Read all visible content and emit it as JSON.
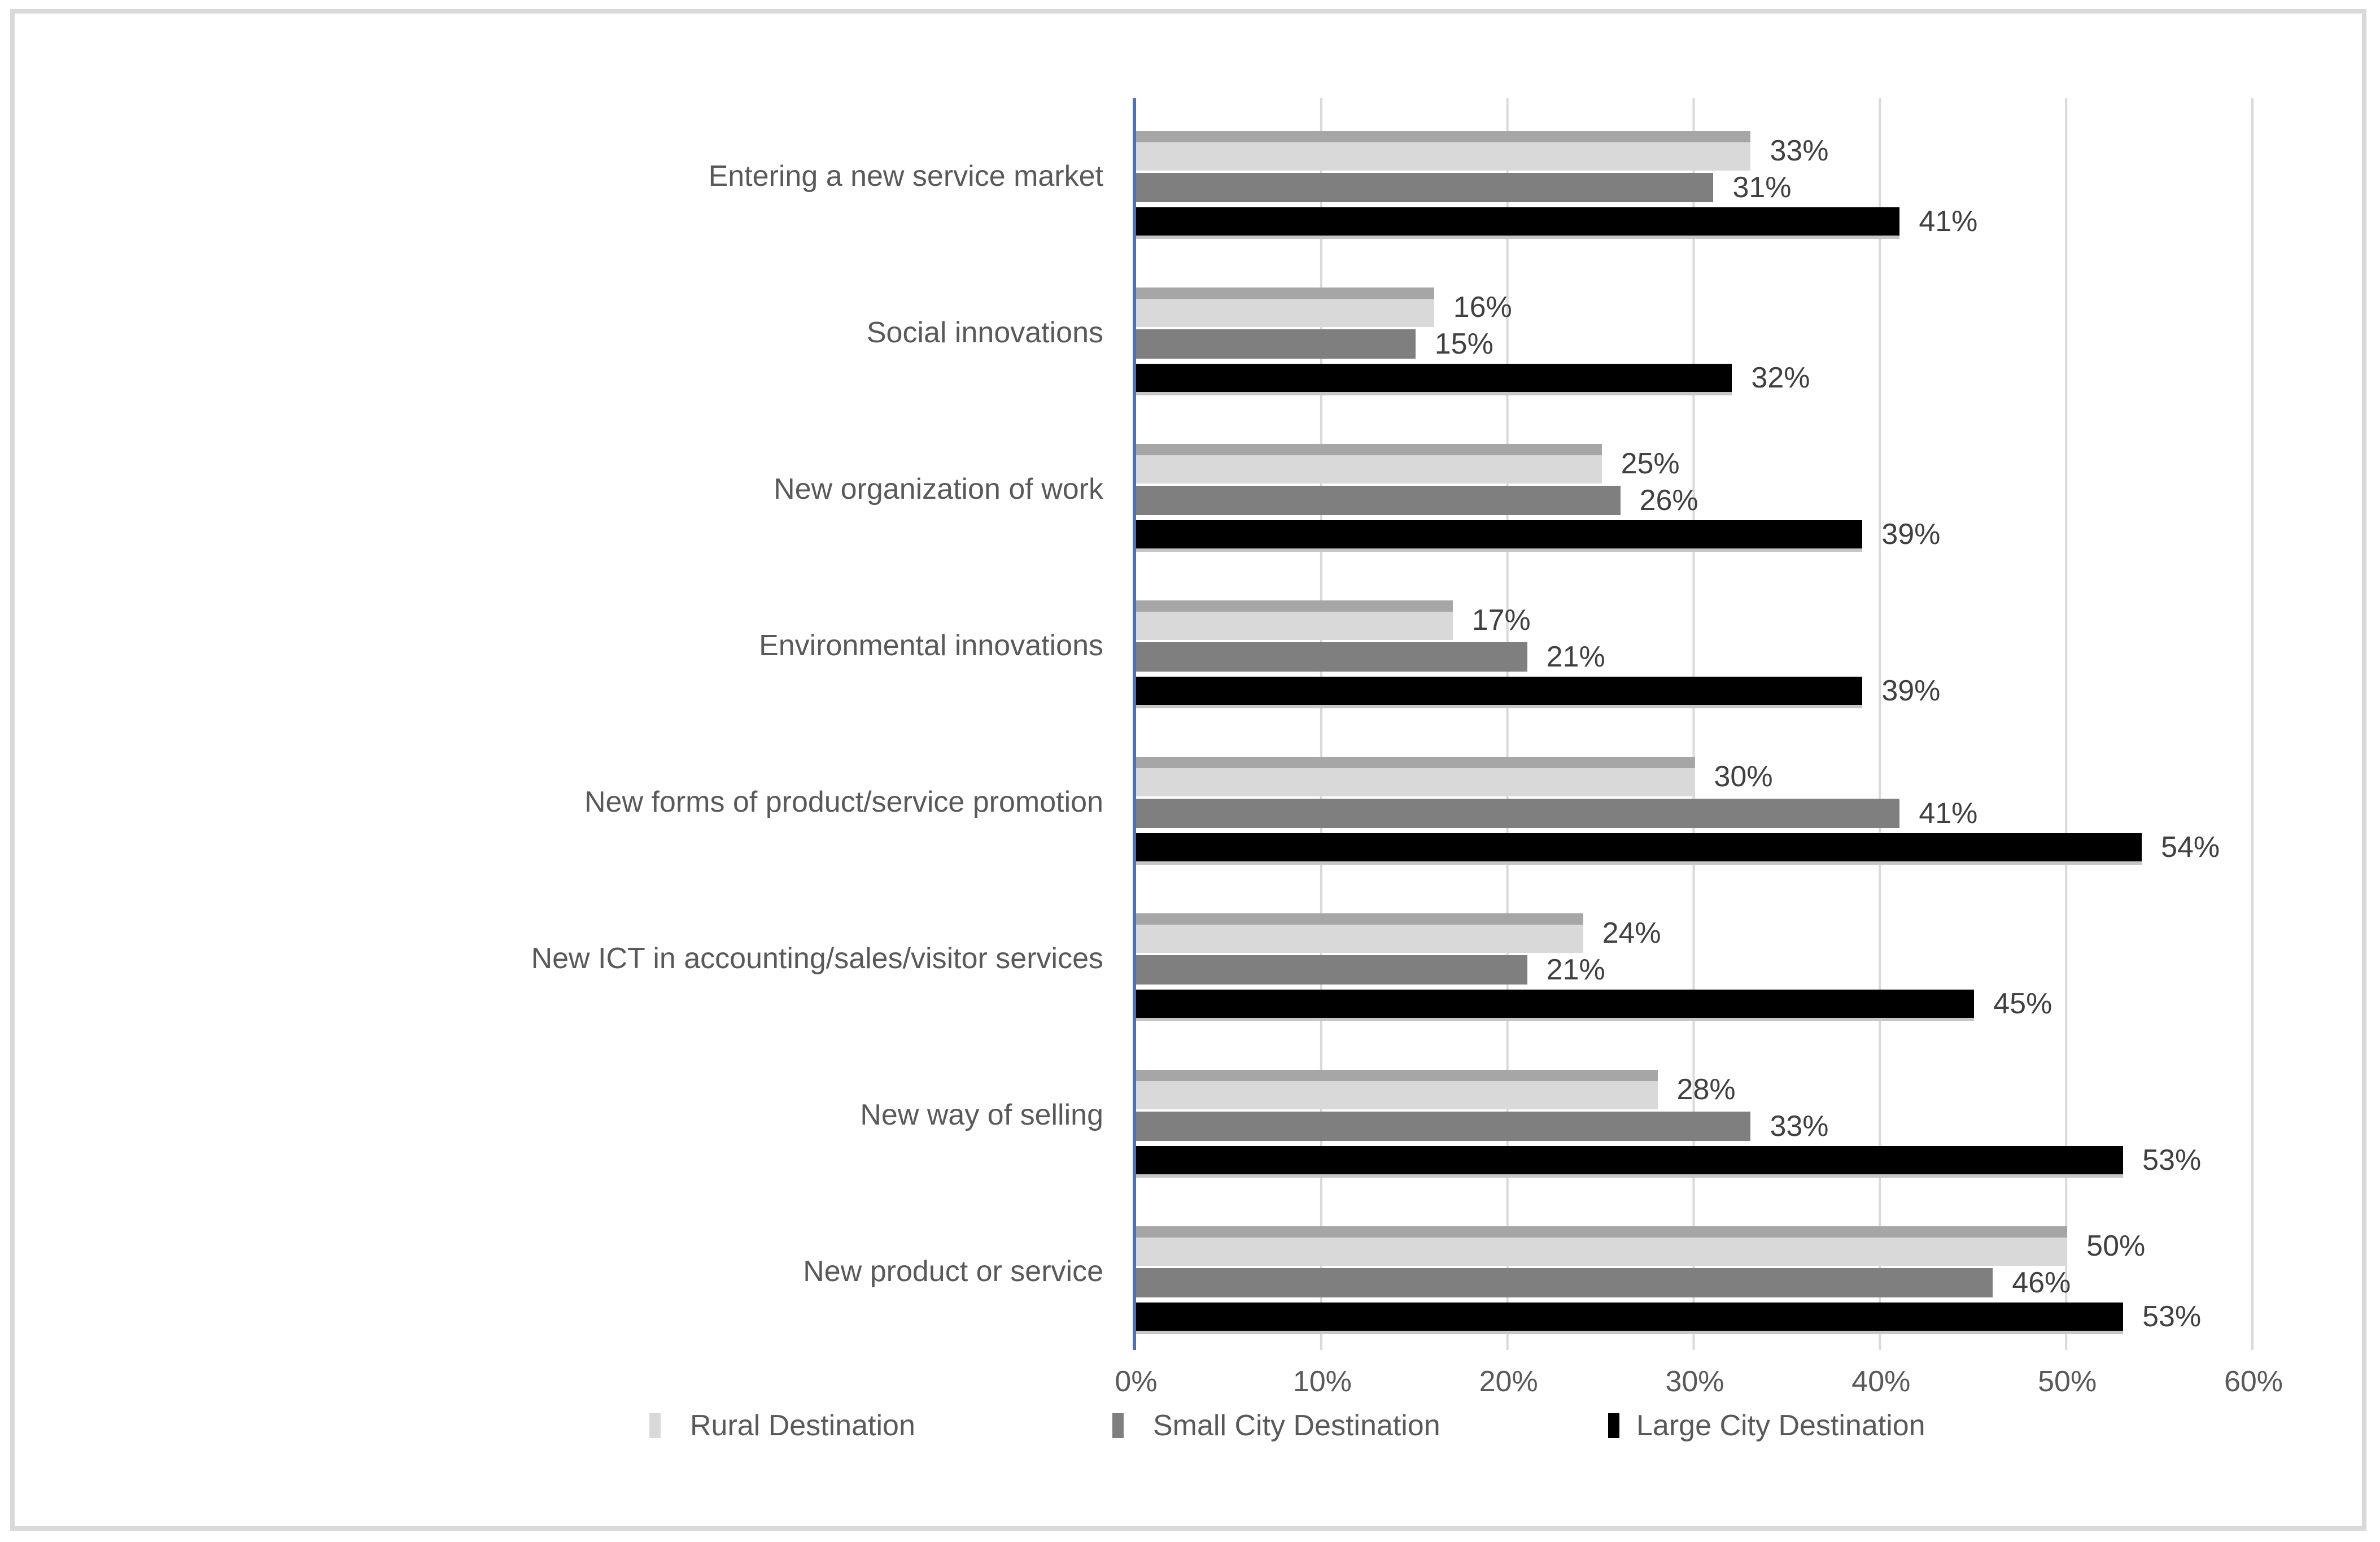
{
  "figure": {
    "frame_border_color": "#d9d9d9",
    "background_color": "#ffffff"
  },
  "chart_data": {
    "type": "bar",
    "orientation": "horizontal",
    "title": "",
    "xlabel": "",
    "ylabel": "",
    "categories": [
      "Entering a new service market",
      "Social innovations",
      "New organization of work",
      "Environmental innovations",
      "New forms of product/service promotion",
      "New ICT in accounting/sales/visitor services",
      "New way of selling",
      "New product or service"
    ],
    "series": [
      {
        "name": "Rural Destination",
        "color": "#d9d9d9",
        "edge_color": "#a6a6a6",
        "values": [
          33,
          16,
          25,
          17,
          30,
          24,
          28,
          50
        ]
      },
      {
        "name": "Small City Destination",
        "color": "#7f7f7f",
        "values": [
          31,
          15,
          26,
          21,
          41,
          21,
          33,
          46
        ]
      },
      {
        "name": "Large City Destination",
        "color": "#000000",
        "values": [
          41,
          32,
          39,
          39,
          54,
          45,
          53,
          53
        ]
      }
    ],
    "value_suffix": "%",
    "xlim": [
      0,
      60
    ],
    "x_ticks": [
      "0%",
      "10%",
      "20%",
      "30%",
      "40%",
      "50%",
      "60%"
    ],
    "grid": "vertical",
    "legend_position": "bottom",
    "data_labels": "outside-end",
    "colors": {
      "gridline": "#d9d9d9",
      "axis_line": "#4472c4",
      "category_label": "#595959",
      "tick_label": "#595959",
      "data_label": "#404040"
    }
  }
}
